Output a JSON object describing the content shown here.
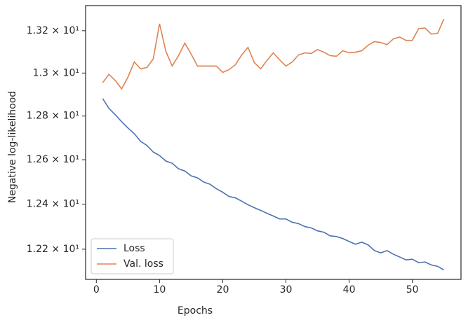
{
  "chart_data": {
    "type": "line",
    "x_label": "Epochs",
    "y_label": "Negative log-likelihood",
    "x": [
      1,
      2,
      3,
      4,
      5,
      6,
      7,
      8,
      9,
      10,
      11,
      12,
      13,
      14,
      15,
      16,
      17,
      18,
      19,
      20,
      21,
      22,
      23,
      24,
      25,
      26,
      27,
      28,
      29,
      30,
      31,
      32,
      33,
      34,
      35,
      36,
      37,
      38,
      39,
      40,
      41,
      42,
      43,
      44,
      45,
      46,
      47,
      48,
      49,
      50,
      51,
      52,
      53,
      54,
      55
    ],
    "series": [
      {
        "name": "Loss",
        "color": "#4c72b0",
        "values": [
          12.881,
          12.835,
          12.806,
          12.774,
          12.745,
          12.719,
          12.684,
          12.665,
          12.635,
          12.619,
          12.594,
          12.584,
          12.559,
          12.549,
          12.527,
          12.518,
          12.499,
          12.489,
          12.469,
          12.453,
          12.434,
          12.428,
          12.413,
          12.397,
          12.384,
          12.372,
          12.359,
          12.347,
          12.334,
          12.334,
          12.319,
          12.313,
          12.3,
          12.294,
          12.281,
          12.275,
          12.259,
          12.256,
          12.247,
          12.234,
          12.222,
          12.231,
          12.219,
          12.194,
          12.184,
          12.194,
          12.178,
          12.166,
          12.153,
          12.156,
          12.141,
          12.144,
          12.131,
          12.125,
          12.109
        ]
      },
      {
        "name": "Val. loss",
        "color": "#dd8452",
        "values": [
          12.955,
          12.994,
          12.965,
          12.926,
          12.981,
          13.052,
          13.02,
          13.026,
          13.066,
          13.233,
          13.102,
          13.033,
          13.082,
          13.141,
          13.089,
          13.033,
          13.033,
          13.033,
          13.033,
          13.003,
          13.016,
          13.039,
          13.085,
          13.121,
          13.049,
          13.02,
          13.059,
          13.095,
          13.062,
          13.033,
          13.052,
          13.085,
          13.095,
          13.092,
          13.111,
          13.098,
          13.082,
          13.079,
          13.105,
          13.095,
          13.098,
          13.105,
          13.131,
          13.148,
          13.144,
          13.134,
          13.161,
          13.17,
          13.154,
          13.154,
          13.21,
          13.213,
          13.184,
          13.187,
          13.256
        ]
      }
    ],
    "xlim": [
      -1.7,
      57.7
    ],
    "xticks": [
      0,
      10,
      20,
      30,
      40,
      50
    ],
    "ylim": [
      12.068,
      13.32
    ],
    "y_log": true,
    "yticks": [
      {
        "value": 12.2,
        "label": "1.22 × 10¹"
      },
      {
        "value": 12.4,
        "label": "1.24 × 10¹"
      },
      {
        "value": 12.6,
        "label": "1.26 × 10¹"
      },
      {
        "value": 12.8,
        "label": "1.28 × 10¹"
      },
      {
        "value": 13.0,
        "label": "1.3 × 10¹"
      },
      {
        "value": 13.2,
        "label": "1.32 × 10¹"
      }
    ],
    "grid": false,
    "legend": "lower left"
  }
}
